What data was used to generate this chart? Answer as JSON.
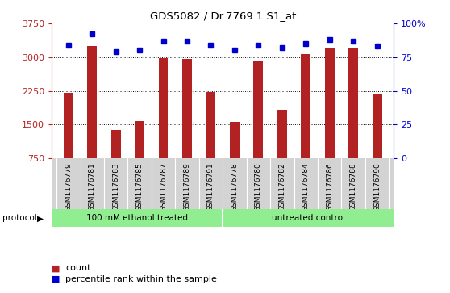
{
  "title": "GDS5082 / Dr.7769.1.S1_at",
  "samples": [
    "GSM1176779",
    "GSM1176781",
    "GSM1176783",
    "GSM1176785",
    "GSM1176787",
    "GSM1176789",
    "GSM1176791",
    "GSM1176778",
    "GSM1176780",
    "GSM1176782",
    "GSM1176784",
    "GSM1176786",
    "GSM1176788",
    "GSM1176790"
  ],
  "counts": [
    2200,
    3250,
    1380,
    1580,
    2980,
    2960,
    2230,
    1560,
    2930,
    1820,
    3060,
    3210,
    3190,
    2190
  ],
  "percentiles": [
    84,
    92,
    79,
    80,
    87,
    87,
    84,
    80,
    84,
    82,
    85,
    88,
    87,
    83
  ],
  "groups": [
    {
      "label": "100 mM ethanol treated",
      "start": 0,
      "end": 7,
      "color": "#90EE90"
    },
    {
      "label": "untreated control",
      "start": 7,
      "end": 14,
      "color": "#90EE90"
    }
  ],
  "ylim_left": [
    750,
    3750
  ],
  "ylim_right": [
    0,
    100
  ],
  "yticks_left": [
    750,
    1500,
    2250,
    3000,
    3750
  ],
  "yticks_right": [
    0,
    25,
    50,
    75,
    100
  ],
  "ytick_labels_right": [
    "0",
    "25",
    "50",
    "75",
    "100%"
  ],
  "bar_color": "#B22222",
  "dot_color": "#0000CD",
  "bg_color": "#D3D3D3",
  "protocol_label": "protocol",
  "legend_count": "count",
  "legend_percentile": "percentile rank within the sample",
  "grid_color": "black",
  "bar_width": 0.4,
  "dot_size": 5
}
